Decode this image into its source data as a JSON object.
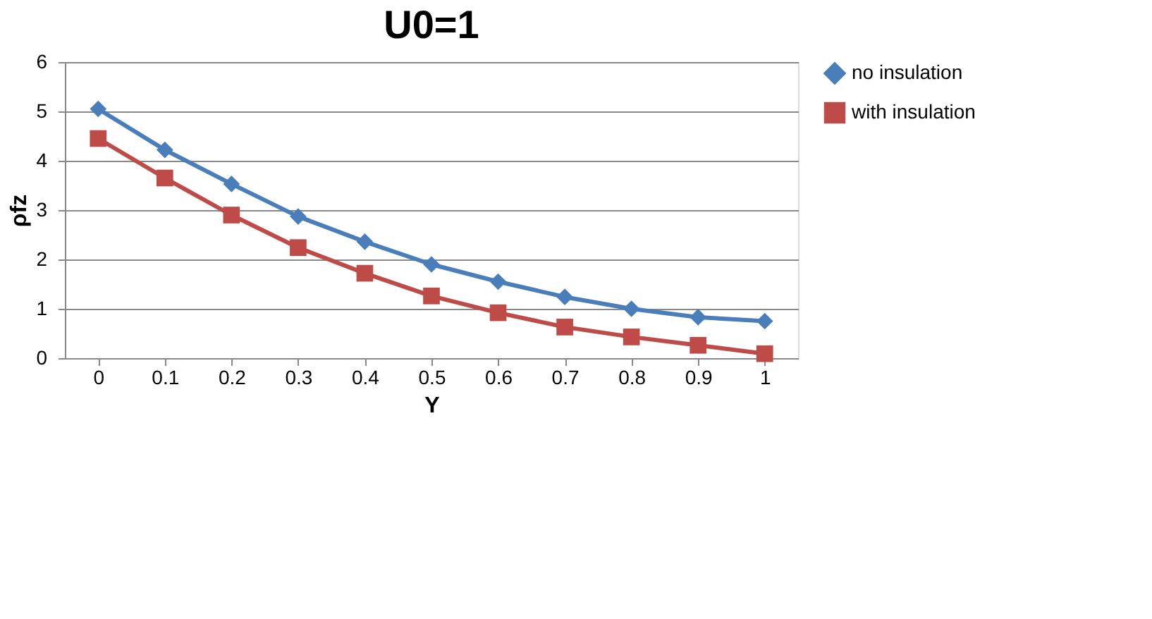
{
  "chart_data": {
    "type": "line",
    "title": "U0=1",
    "xlabel": "Y",
    "ylabel": "ρfz",
    "categories": [
      "0",
      "0.1",
      "0.2",
      "0.3",
      "0.4",
      "0.5",
      "0.6",
      "0.7",
      "0.8",
      "0.9",
      "1"
    ],
    "series": [
      {
        "name": "no insulation",
        "color": "#4a7ebb",
        "marker": "diamond",
        "values": [
          5.05,
          4.22,
          3.53,
          2.87,
          2.36,
          1.9,
          1.55,
          1.24,
          1.0,
          0.83,
          0.75
        ]
      },
      {
        "name": "with insulation",
        "color": "#be4b48",
        "marker": "square",
        "values": [
          4.45,
          3.65,
          2.9,
          2.24,
          1.72,
          1.26,
          0.92,
          0.63,
          0.43,
          0.26,
          0.09
        ]
      }
    ],
    "ylim": [
      0,
      6
    ],
    "yticks": [
      0,
      1,
      2,
      3,
      4,
      5,
      6
    ],
    "grid": "y",
    "legend": "right",
    "line_style": "solid"
  }
}
